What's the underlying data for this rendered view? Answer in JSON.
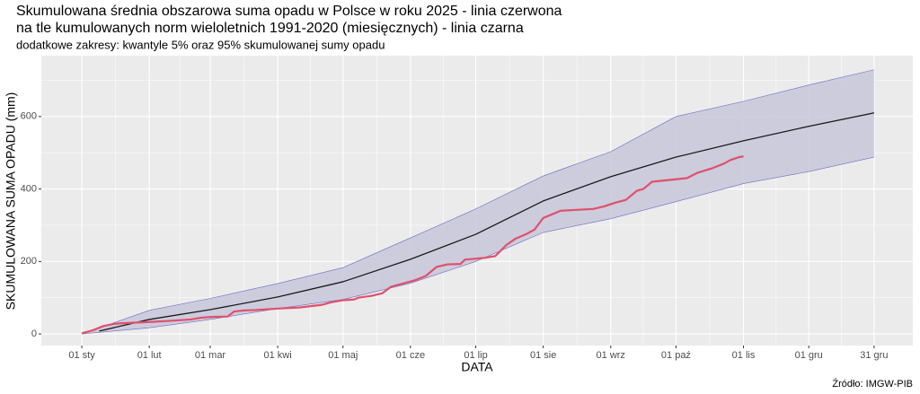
{
  "chart_data": {
    "type": "line",
    "title": "Skumulowana średnia obszarowa suma opadu w Polsce w roku 2025 - linia czerwona",
    "title_line2": "na tle kumulowanych norm wieloletnich 1991-2020 (miesięcznych) - linia czarna",
    "subtitle": "dodatkowe zakresy: kwantyle 5% oraz 95% skumulowanej sumy opadu",
    "x_label": "DATA",
    "y_label": "SKUMULOWANA SUMA OPADU (mm)",
    "source": "Źródło: IMGW-PIB",
    "xlim": [
      -18.6,
      381.8
    ],
    "ylim": [
      -32,
      768
    ],
    "xticks": [
      {
        "value": 0,
        "label": "01 sty"
      },
      {
        "value": 31,
        "label": "01 lut"
      },
      {
        "value": 59,
        "label": "01 mar"
      },
      {
        "value": 90,
        "label": "01 kwi"
      },
      {
        "value": 120,
        "label": "01 maj"
      },
      {
        "value": 151,
        "label": "01 cze"
      },
      {
        "value": 181,
        "label": "01 lip"
      },
      {
        "value": 212,
        "label": "01 sie"
      },
      {
        "value": 243,
        "label": "01 wrz"
      },
      {
        "value": 273,
        "label": "01 paź"
      },
      {
        "value": 304,
        "label": "01 lis"
      },
      {
        "value": 334,
        "label": "01 gru"
      },
      {
        "value": 364,
        "label": "31 gru"
      }
    ],
    "xminorticks": [
      15.5,
      45,
      74.5,
      105,
      135.5,
      166,
      196.5,
      227.5,
      258,
      288.5,
      319,
      349
    ],
    "yticks": [
      0,
      200,
      400,
      600
    ],
    "yminorticks": [
      100,
      300,
      500,
      700
    ],
    "grid": true,
    "band": {
      "color": "#6b6bbf",
      "fill": "#c9c9dc",
      "x": [
        0,
        31,
        59,
        90,
        120,
        151,
        181,
        212,
        243,
        273,
        304,
        334,
        364
      ],
      "upper": [
        0,
        65,
        98,
        139,
        183,
        265,
        345,
        436,
        503,
        600,
        642,
        687,
        729
      ],
      "lower": [
        0,
        17,
        40,
        70,
        95,
        140,
        200,
        280,
        318,
        365,
        415,
        448,
        488
      ]
    },
    "norm": {
      "color": "#1a1a1a",
      "x": [
        8,
        31,
        59,
        90,
        120,
        151,
        181,
        212,
        243,
        273,
        304,
        334,
        364
      ],
      "values": [
        8,
        40,
        67,
        102,
        144,
        206,
        275,
        367,
        434,
        488,
        533,
        573,
        610
      ]
    },
    "observed": {
      "color": "#e0506a",
      "x": [
        0,
        5,
        10,
        15,
        20,
        31,
        40,
        50,
        55,
        60,
        67,
        70,
        75,
        80,
        90,
        100,
        110,
        115,
        120,
        125,
        127,
        133,
        138,
        142,
        147,
        153,
        158,
        163,
        168,
        174,
        176,
        185,
        190,
        195,
        199,
        204,
        208,
        212,
        216,
        220,
        235,
        240,
        245,
        250,
        255,
        258,
        262,
        270,
        278,
        283,
        290,
        295,
        298,
        302,
        304
      ],
      "values": [
        2,
        10,
        22,
        28,
        30,
        33,
        36,
        40,
        45,
        47,
        48,
        62,
        65,
        66,
        70,
        73,
        80,
        88,
        93,
        95,
        100,
        105,
        112,
        130,
        138,
        148,
        160,
        185,
        192,
        193,
        205,
        210,
        215,
        245,
        262,
        275,
        288,
        320,
        330,
        340,
        345,
        352,
        362,
        370,
        395,
        400,
        420,
        425,
        430,
        445,
        458,
        470,
        480,
        488,
        490
      ]
    }
  }
}
